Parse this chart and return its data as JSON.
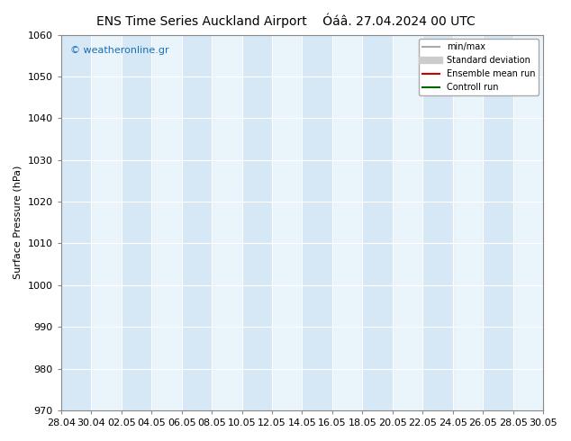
{
  "title_left": "ENS Time Series Auckland Airport",
  "title_right": "Óáâ. 27.04.2024 00 UTC",
  "ylabel": "Surface Pressure (hPa)",
  "ylim": [
    970,
    1060
  ],
  "yticks": [
    970,
    980,
    990,
    1000,
    1010,
    1020,
    1030,
    1040,
    1050,
    1060
  ],
  "x_labels": [
    "28.04",
    "30.04",
    "02.05",
    "04.05",
    "06.05",
    "08.05",
    "10.05",
    "12.05",
    "14.05",
    "16.05",
    "18.05",
    "20.05",
    "22.05",
    "24.05",
    "26.05",
    "28.05",
    "30.05"
  ],
  "x_values": [
    0,
    2,
    4,
    6,
    8,
    10,
    12,
    14,
    16,
    18,
    20,
    22,
    24,
    26,
    28,
    30,
    32
  ],
  "shaded_columns": [
    0,
    4,
    8,
    12,
    16,
    20,
    24,
    28,
    32
  ],
  "shaded_color": "#d6e8f5",
  "background_color": "#ffffff",
  "plot_bg_color": "#eaf4fb",
  "watermark": "© weatheronline.gr",
  "watermark_color": "#1a6eb5",
  "legend_items": [
    {
      "label": "min/max",
      "color": "#aaaaaa",
      "lw": 1.5,
      "ls": "-"
    },
    {
      "label": "Standard deviation",
      "color": "#cccccc",
      "lw": 6,
      "ls": "-"
    },
    {
      "label": "Ensemble mean run",
      "color": "#cc0000",
      "lw": 1.5,
      "ls": "-"
    },
    {
      "label": "Controll run",
      "color": "#006600",
      "lw": 1.5,
      "ls": "-"
    }
  ],
  "grid_color": "#ffffff",
  "tick_fontsize": 8,
  "label_fontsize": 8,
  "title_fontsize": 10
}
